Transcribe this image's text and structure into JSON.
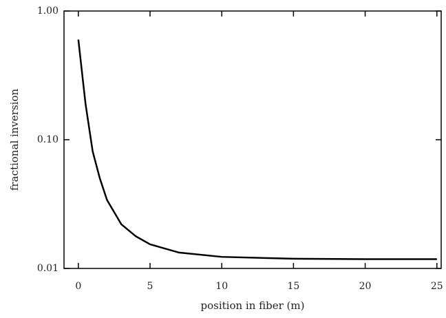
{
  "chart_data": {
    "type": "line",
    "x_label": "position in fiber (m)",
    "y_label": "fractional inversion",
    "x": [
      0,
      0.5,
      1,
      1.5,
      2,
      3,
      4,
      5,
      7,
      10,
      15,
      20,
      25
    ],
    "series": [
      {
        "color": "#000000",
        "values": [
          0.6,
          0.19,
          0.081,
          0.05,
          0.034,
          0.022,
          0.0178,
          0.0154,
          0.0133,
          0.0123,
          0.0119,
          0.0118,
          0.0118
        ]
      }
    ],
    "xlim": [
      -1,
      25.3
    ],
    "xticks": [
      0,
      5,
      10,
      15,
      20,
      25
    ],
    "ylim": [
      0.01,
      1
    ],
    "yticks": [
      {
        "value": 0.01,
        "label": "0.01"
      },
      {
        "value": 0.1,
        "label": "0.10"
      },
      {
        "value": 1,
        "label": "1.00"
      }
    ],
    "y_log": true
  }
}
